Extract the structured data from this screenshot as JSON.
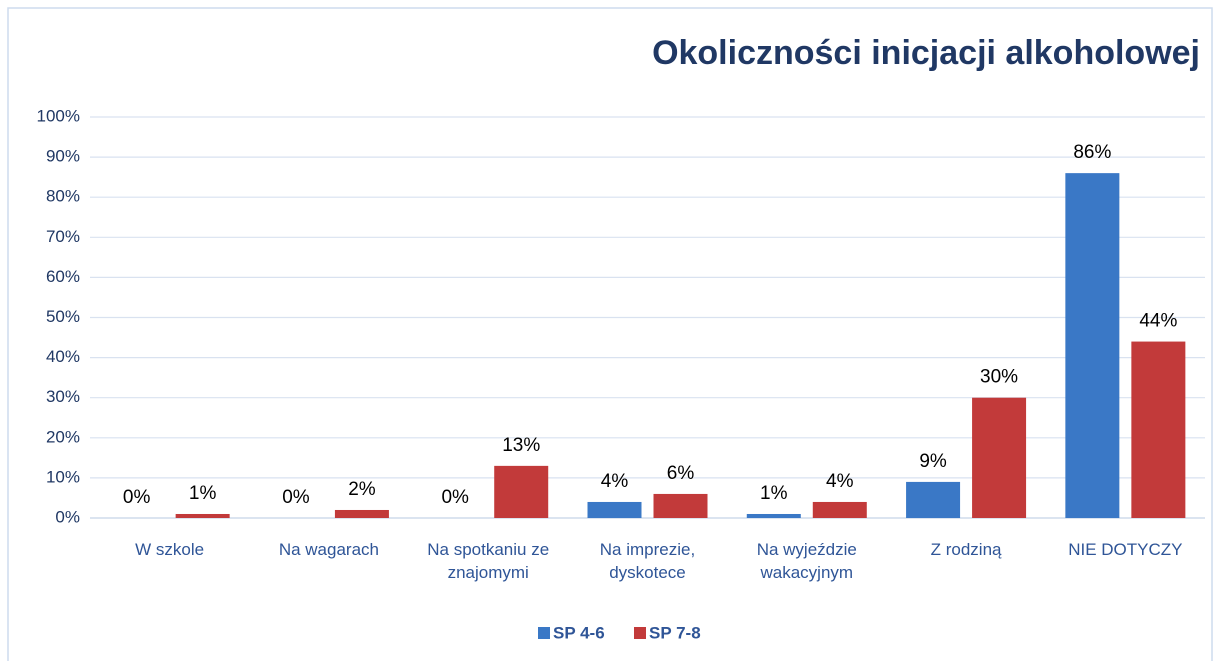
{
  "chart_data": {
    "type": "bar",
    "title": "Okoliczności inicjacji alkoholowej",
    "categories": [
      "W szkole",
      "Na wagarach",
      "Na spotkaniu ze\nznajomymi",
      "Na imprezie,\ndyskotece",
      "Na wyjeździe\nwakacyjnym",
      "Z rodziną",
      "NIE DOTYCZY"
    ],
    "series": [
      {
        "name": "SP 4-6",
        "color": "#3a78c6",
        "values": [
          0,
          0,
          0,
          4,
          1,
          9,
          86
        ],
        "value_labels": [
          "0%",
          "0%",
          "0%",
          "4%",
          "1%",
          "9%",
          "86%"
        ]
      },
      {
        "name": "SP 7-8",
        "color": "#c23a3a",
        "values": [
          1,
          2,
          13,
          6,
          4,
          30,
          44
        ],
        "value_labels": [
          "1%",
          "2%",
          "13%",
          "6%",
          "4%",
          "30%",
          "44%"
        ]
      }
    ],
    "ylim": [
      0,
      100
    ],
    "yticks": [
      {
        "value": 0,
        "label": "0%"
      },
      {
        "value": 10,
        "label": "10%"
      },
      {
        "value": 20,
        "label": "20%"
      },
      {
        "value": 30,
        "label": "30%"
      },
      {
        "value": 40,
        "label": "40%"
      },
      {
        "value": 50,
        "label": "50%"
      },
      {
        "value": 60,
        "label": "60%"
      },
      {
        "value": 70,
        "label": "70%"
      },
      {
        "value": 80,
        "label": "80%"
      },
      {
        "value": 90,
        "label": "90%"
      },
      {
        "value": 100,
        "label": "100%"
      }
    ],
    "grid": true,
    "legend": "bottom"
  }
}
